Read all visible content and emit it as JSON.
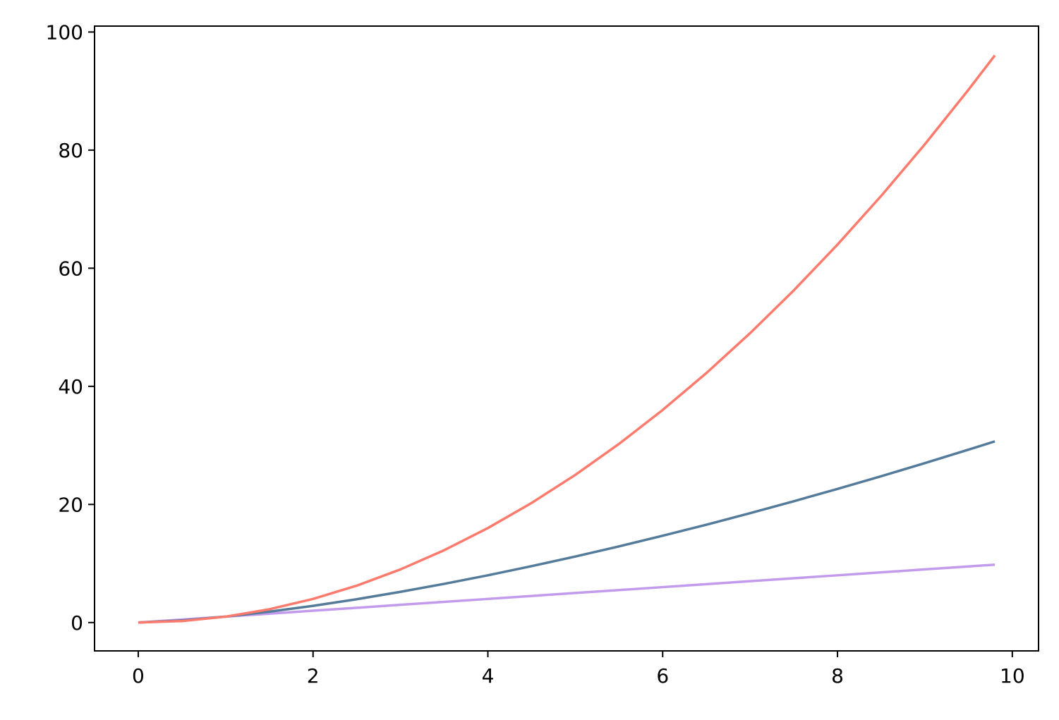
{
  "chart_data": {
    "type": "line",
    "title": "",
    "xlabel": "",
    "ylabel": "",
    "xlim": [
      -0.5,
      10.3
    ],
    "ylim": [
      -4.8,
      101
    ],
    "x_ticks": [
      0,
      2,
      4,
      6,
      8,
      10
    ],
    "y_ticks": [
      0,
      20,
      40,
      60,
      80,
      100
    ],
    "x_tick_labels": [
      "0",
      "2",
      "4",
      "6",
      "8",
      "10"
    ],
    "y_tick_labels": [
      "0",
      "20",
      "40",
      "60",
      "80",
      "100"
    ],
    "grid": false,
    "legend": "none",
    "x": [
      0,
      0.5,
      1,
      1.5,
      2,
      2.5,
      3,
      3.5,
      4,
      4.5,
      5,
      5.5,
      6,
      6.5,
      7,
      7.5,
      8,
      8.5,
      9,
      9.5,
      9.8
    ],
    "series": [
      {
        "color": "#c39bec",
        "values": [
          0,
          0.5,
          1,
          1.5,
          2,
          2.5,
          3,
          3.5,
          4,
          4.5,
          5,
          5.5,
          6,
          6.5,
          7,
          7.5,
          8,
          8.5,
          9,
          9.5,
          9.8
        ]
      },
      {
        "color": "#557b9a",
        "values": [
          0,
          0.35,
          1,
          1.84,
          2.83,
          3.95,
          5.2,
          6.55,
          8,
          9.55,
          11.18,
          12.9,
          14.7,
          16.57,
          18.52,
          20.54,
          22.63,
          24.78,
          27,
          29.28,
          30.68
        ]
      },
      {
        "color": "#fd7b6d",
        "values": [
          0,
          0.25,
          1,
          2.25,
          4,
          6.25,
          9,
          12.25,
          16,
          20.25,
          25,
          30.25,
          36,
          42.25,
          49,
          56.25,
          64,
          72.25,
          81,
          90.25,
          96.04
        ]
      }
    ]
  }
}
